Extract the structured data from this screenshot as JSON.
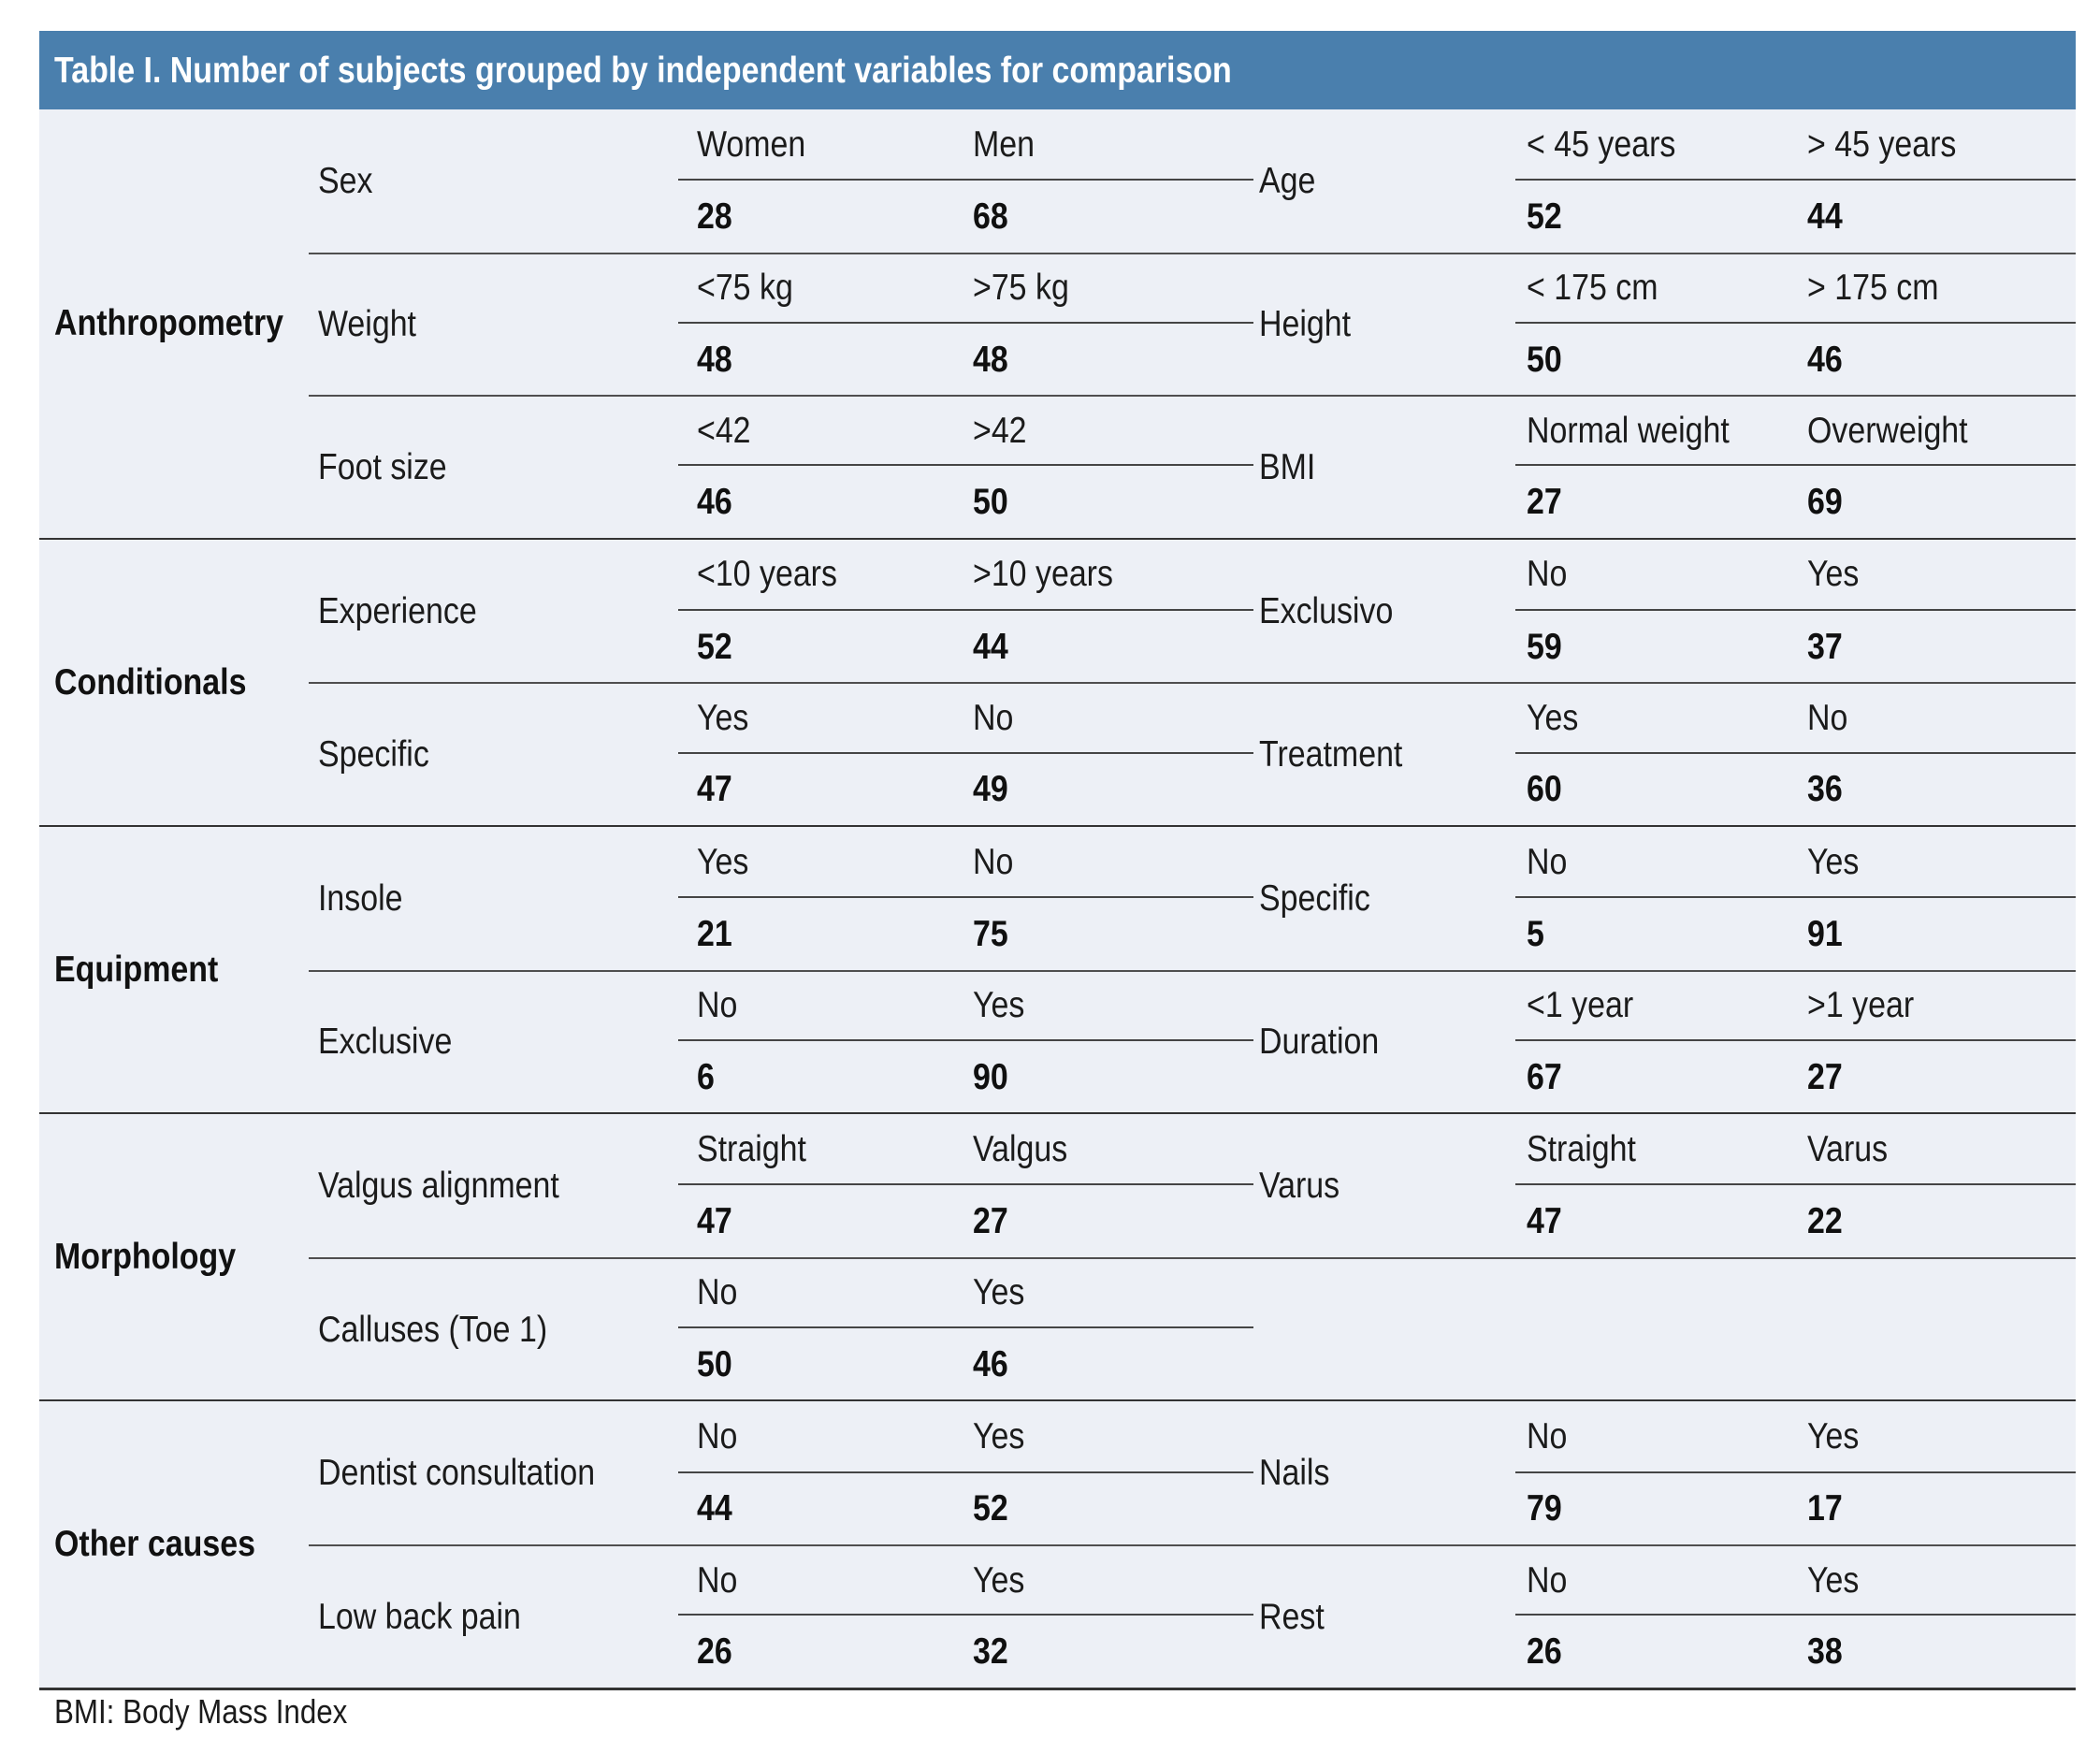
{
  "title": "Table I. Number of subjects grouped by independent variables for comparison",
  "footnote": "BMI: Body Mass Index",
  "colors": {
    "header_bg": "#4a7fad",
    "body_bg": "#edf0f6",
    "title_color": "#ffffff",
    "text_color": "#1b1b1b",
    "rule_group": "#333333",
    "rule_inner": "#4f4f4f",
    "rule_underline": "#454545"
  },
  "groups": [
    {
      "name": "Anthropometry",
      "rows": [
        {
          "left": {
            "variable": "Sex",
            "labels": [
              "Women",
              "Men"
            ],
            "values": [
              "28",
              "68"
            ]
          },
          "right": {
            "variable": "Age",
            "labels": [
              "< 45 years",
              "> 45 years"
            ],
            "values": [
              "52",
              "44"
            ]
          }
        },
        {
          "left": {
            "variable": "Weight",
            "labels": [
              "<75 kg",
              ">75 kg"
            ],
            "values": [
              "48",
              "48"
            ]
          },
          "right": {
            "variable": "Height",
            "labels": [
              "< 175 cm",
              "> 175 cm"
            ],
            "values": [
              "50",
              "46"
            ]
          }
        },
        {
          "left": {
            "variable": "Foot size",
            "labels": [
              "<42",
              ">42"
            ],
            "values": [
              "46",
              "50"
            ]
          },
          "right": {
            "variable": "BMI",
            "labels": [
              "Normal weight",
              "Overweight"
            ],
            "values": [
              "27",
              "69"
            ]
          }
        }
      ]
    },
    {
      "name": "Conditionals",
      "rows": [
        {
          "left": {
            "variable": "Experience",
            "labels": [
              "<10 years",
              ">10 years"
            ],
            "values": [
              "52",
              "44"
            ]
          },
          "right": {
            "variable": "Exclusivo",
            "labels": [
              "No",
              "Yes"
            ],
            "values": [
              "59",
              "37"
            ]
          }
        },
        {
          "left": {
            "variable": "Specific",
            "labels": [
              "Yes",
              "No"
            ],
            "values": [
              "47",
              "49"
            ]
          },
          "right": {
            "variable": "Treatment",
            "labels": [
              "Yes",
              "No"
            ],
            "values": [
              "60",
              "36"
            ]
          }
        }
      ]
    },
    {
      "name": "Equipment",
      "rows": [
        {
          "left": {
            "variable": "Insole",
            "labels": [
              "Yes",
              "No"
            ],
            "values": [
              "21",
              "75"
            ]
          },
          "right": {
            "variable": "Specific",
            "labels": [
              "No",
              "Yes"
            ],
            "values": [
              "5",
              "91"
            ]
          }
        },
        {
          "left": {
            "variable": "Exclusive",
            "labels": [
              "No",
              "Yes"
            ],
            "values": [
              "6",
              "90"
            ]
          },
          "right": {
            "variable": "Duration",
            "labels": [
              "<1 year",
              ">1 year"
            ],
            "values": [
              "67",
              "27"
            ]
          }
        }
      ]
    },
    {
      "name": "Morphology",
      "rows": [
        {
          "left": {
            "variable": "Valgus alignment",
            "labels": [
              "Straight",
              "Valgus"
            ],
            "values": [
              "47",
              "27"
            ]
          },
          "right": {
            "variable": "Varus",
            "labels": [
              "Straight",
              "Varus"
            ],
            "values": [
              "47",
              "22"
            ]
          }
        },
        {
          "left": {
            "variable": "Calluses (Toe 1)",
            "labels": [
              "No",
              "Yes"
            ],
            "values": [
              "50",
              "46"
            ]
          },
          "right": null
        }
      ]
    },
    {
      "name": "Other causes",
      "rows": [
        {
          "left": {
            "variable": "Dentist consultation",
            "labels": [
              "No",
              "Yes"
            ],
            "values": [
              "44",
              "52"
            ]
          },
          "right": {
            "variable": "Nails",
            "labels": [
              "No",
              "Yes"
            ],
            "values": [
              "79",
              "17"
            ]
          }
        },
        {
          "left": {
            "variable": "Low back pain",
            "labels": [
              "No",
              "Yes"
            ],
            "values": [
              "26",
              "32"
            ]
          },
          "right": {
            "variable": "Rest",
            "labels": [
              "No",
              "Yes"
            ],
            "values": [
              "26",
              "38"
            ]
          }
        }
      ]
    }
  ]
}
